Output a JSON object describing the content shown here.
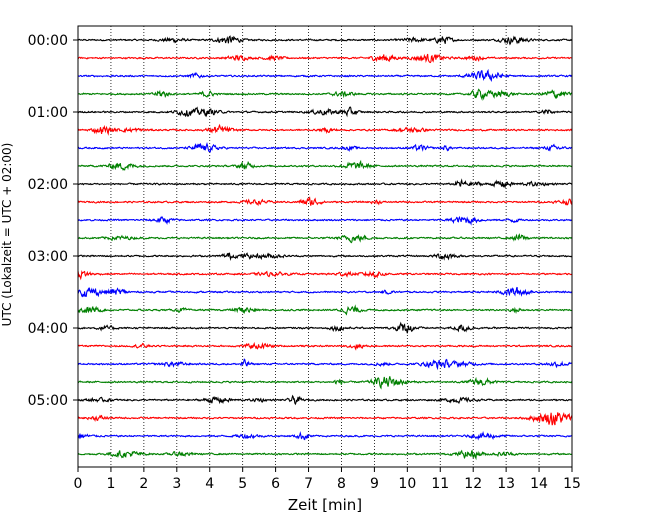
{
  "chart_data": {
    "type": "line",
    "title": "",
    "xlabel": "Zeit  [min]",
    "ylabel": "UTC (Lokalzeit = UTC + 02:00)",
    "xlim": [
      0,
      15
    ],
    "x_ticks": [
      "0",
      "1",
      "2",
      "3",
      "4",
      "5",
      "6",
      "7",
      "8",
      "9",
      "10",
      "11",
      "12",
      "13",
      "14",
      "15"
    ],
    "y_ticks": [
      "00:00",
      "01:00",
      "02:00",
      "03:00",
      "04:00",
      "05:00"
    ],
    "trace_interval_min": 15,
    "trace_count": 24,
    "trace_colors": [
      "#000000",
      "#ff0000",
      "#0000ff",
      "#008000"
    ],
    "grid": {
      "x": true,
      "style": "dotted"
    },
    "legend": "none"
  }
}
